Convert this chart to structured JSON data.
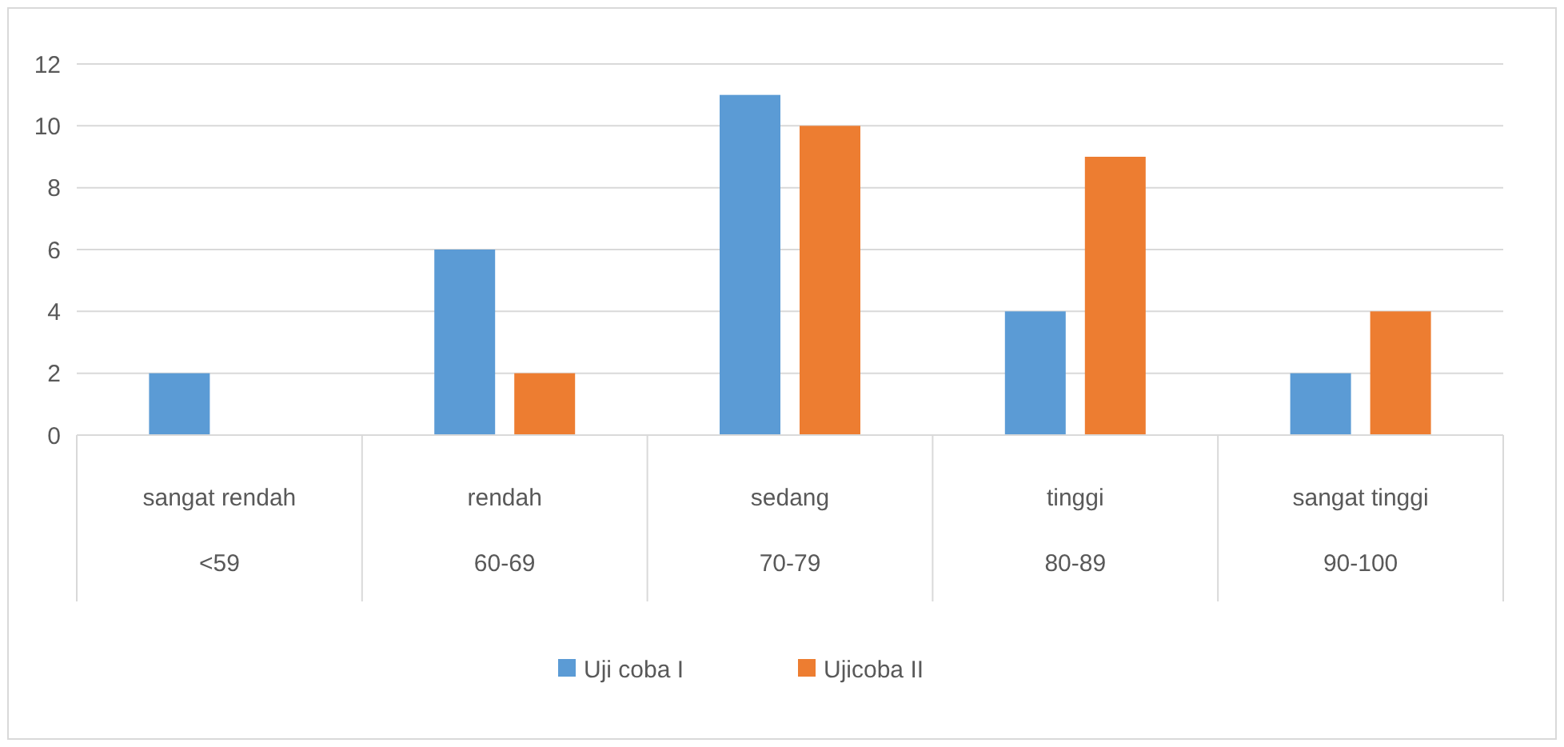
{
  "chart_data": {
    "type": "bar",
    "categories": [
      "sangat rendah\n<59",
      "rendah\n60-69",
      "sedang\n70-79",
      "tinggi\n80-89",
      "sangat tinggi\n90-100"
    ],
    "series": [
      {
        "name": "Uji coba I",
        "color": "#5b9bd5",
        "values": [
          2,
          6,
          11,
          4,
          2
        ]
      },
      {
        "name": "Ujicoba II",
        "color": "#ed7d31",
        "values": [
          0,
          2,
          10,
          9,
          4
        ]
      }
    ],
    "ylim": [
      0,
      12
    ],
    "yticks": [
      0,
      2,
      4,
      6,
      8,
      10,
      12
    ],
    "grid": "y",
    "legend": "bottom"
  }
}
